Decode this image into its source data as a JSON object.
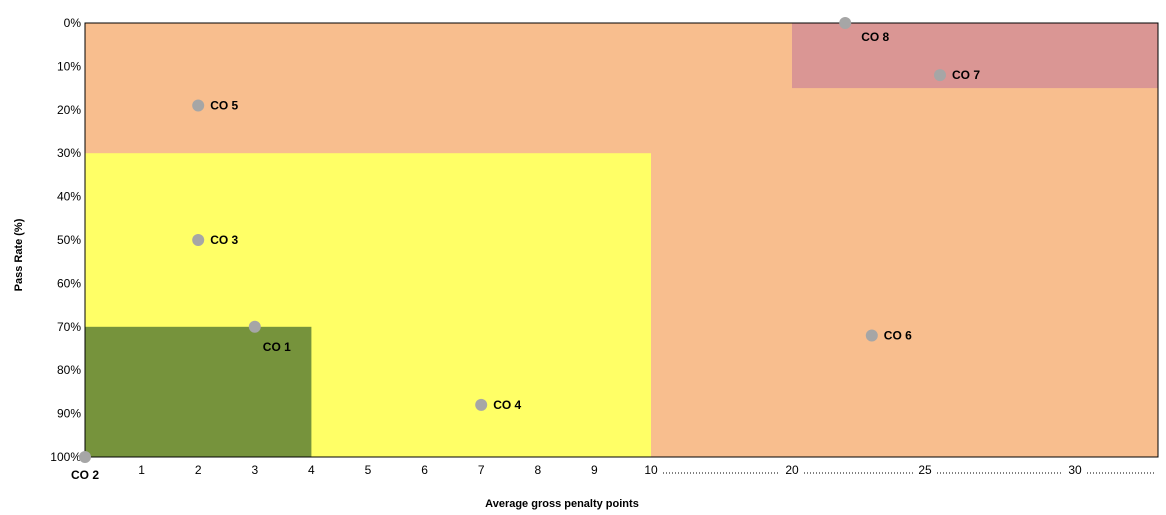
{
  "chart_data": {
    "type": "scatter",
    "xlabel": "Average gross penalty points",
    "ylabel": "Pass  Rate (%)",
    "x_axis_note": "broken axis: 0-10 at unit spacing, then 20, 25, 30 with dotted leaders",
    "x_ticks": [
      "1",
      "2",
      "3",
      "4",
      "5",
      "6",
      "7",
      "8",
      "9",
      "10",
      "20",
      "25",
      "30"
    ],
    "y_ticks": [
      "0%",
      "10%",
      "20%",
      "30%",
      "40%",
      "50%",
      "60%",
      "70%",
      "80%",
      "90%",
      "100%"
    ],
    "y_inverted": true,
    "ylim": [
      0,
      100
    ],
    "grid": false,
    "zones": [
      {
        "name": "overall",
        "color": "#F8BE8E",
        "x_range": [
          0,
          34
        ],
        "y_range": [
          0,
          100
        ]
      },
      {
        "name": "yellow",
        "color": "#FFFF66",
        "x_range": [
          0,
          10
        ],
        "y_range": [
          30,
          100
        ]
      },
      {
        "name": "green",
        "color": "#76933C",
        "x_range": [
          0,
          4
        ],
        "y_range": [
          70,
          100
        ]
      },
      {
        "name": "red",
        "color": "#DA9694",
        "x_range": [
          20,
          34
        ],
        "y_range": [
          0,
          15
        ]
      }
    ],
    "point_color": "#A6A6A6",
    "points": [
      {
        "label": "CO 1",
        "x": 3,
        "y": 70
      },
      {
        "label": "CO 2",
        "x": 0,
        "y": 100
      },
      {
        "label": "CO 3",
        "x": 2,
        "y": 50
      },
      {
        "label": "CO 4",
        "x": 7,
        "y": 88
      },
      {
        "label": "CO 5",
        "x": 2,
        "y": 19
      },
      {
        "label": "CO 6",
        "x": 23,
        "y": 72
      },
      {
        "label": "CO 7",
        "x": 25.5,
        "y": 12
      },
      {
        "label": "CO 8",
        "x": 22,
        "y": 0
      }
    ]
  }
}
